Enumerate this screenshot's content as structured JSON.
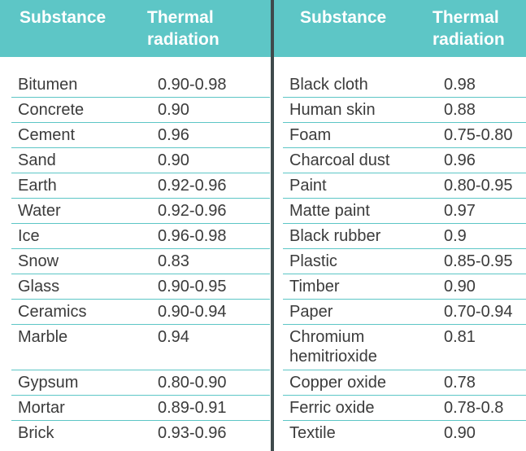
{
  "colors": {
    "header": "#5dc6c6",
    "divider": "#3f4a4c",
    "text": "#3b3b3b",
    "rule": "#5dc6c6"
  },
  "header": {
    "left_substance": "Substance",
    "left_radiation": "Thermal\nradiation",
    "right_substance": "Substance",
    "right_radiation": "Thermal\nradiation"
  },
  "left_rows": [
    {
      "substance": "Bitumen",
      "value": "0.90-0.98"
    },
    {
      "substance": "Concrete",
      "value": "0.90"
    },
    {
      "substance": "Cement",
      "value": "0.96"
    },
    {
      "substance": "Sand",
      "value": "0.90"
    },
    {
      "substance": "Earth",
      "value": "0.92-0.96"
    },
    {
      "substance": "Water",
      "value": "0.92-0.96"
    },
    {
      "substance": "Ice",
      "value": "0.96-0.98"
    },
    {
      "substance": "Snow",
      "value": "0.83"
    },
    {
      "substance": "Glass",
      "value": "0.90-0.95"
    },
    {
      "substance": "Ceramics",
      "value": "0.90-0.94"
    },
    {
      "substance": "Marble",
      "value": "0.94"
    },
    {
      "substance": "Gypsum",
      "value": "0.80-0.90"
    },
    {
      "substance": "Mortar",
      "value": "0.89-0.91"
    },
    {
      "substance": "Brick",
      "value": "0.93-0.96"
    }
  ],
  "right_rows": [
    {
      "substance": "Black cloth",
      "value": "0.98"
    },
    {
      "substance": "Human skin",
      "value": "0.88"
    },
    {
      "substance": "Foam",
      "value": "0.75-0.80"
    },
    {
      "substance": "Charcoal dust",
      "value": "0.96"
    },
    {
      "substance": "Paint",
      "value": "0.80-0.95"
    },
    {
      "substance": "Matte paint",
      "value": "0.97"
    },
    {
      "substance": "Black rubber",
      "value": "0.9"
    },
    {
      "substance": "Plastic",
      "value": "0.85-0.95"
    },
    {
      "substance": "Timber",
      "value": "0.90"
    },
    {
      "substance": "Paper",
      "value": "0.70-0.94"
    },
    {
      "substance": "Chromium\nhemitrioxide",
      "value": "0.81"
    },
    {
      "substance": "Copper oxide",
      "value": "0.78"
    },
    {
      "substance": "Ferric oxide",
      "value": "0.78-0.8"
    },
    {
      "substance": "Textile",
      "value": "0.90"
    }
  ]
}
